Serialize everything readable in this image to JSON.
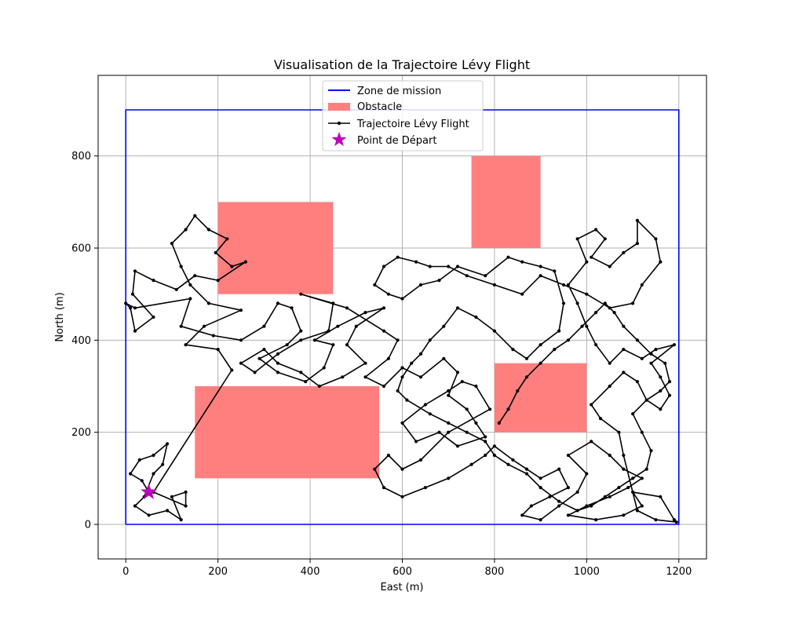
{
  "chart_data": {
    "type": "line",
    "title": "Visualisation de la Trajectoire Lévy Flight",
    "xlabel": "East (m)",
    "ylabel": "North (m)",
    "xlim": [
      -60,
      1260
    ],
    "ylim": [
      -75,
      975
    ],
    "xticks": [
      0,
      200,
      400,
      600,
      800,
      1000,
      1200
    ],
    "yticks": [
      0,
      200,
      400,
      600,
      800
    ],
    "grid": true,
    "legend_position": "top-center",
    "mission_zone": {
      "name": "Zone de mission",
      "color": "#0000ff",
      "polygon": [
        [
          0,
          0
        ],
        [
          1200,
          0
        ],
        [
          1200,
          900
        ],
        [
          0,
          900
        ],
        [
          0,
          0
        ]
      ]
    },
    "obstacles": {
      "name": "Obstacle",
      "color": "#ff7f7f",
      "rects": [
        {
          "x": 200,
          "y": 500,
          "w": 250,
          "h": 200
        },
        {
          "x": 750,
          "y": 600,
          "w": 150,
          "h": 200
        },
        {
          "x": 800,
          "y": 200,
          "w": 200,
          "h": 150
        },
        {
          "x": 150,
          "y": 100,
          "w": 400,
          "h": 200
        }
      ]
    },
    "trajectory": {
      "name": "Trajectoire Lévy Flight",
      "color": "#000000",
      "points": [
        [
          50,
          70
        ],
        [
          35,
          95
        ],
        [
          10,
          110
        ],
        [
          30,
          140
        ],
        [
          60,
          150
        ],
        [
          90,
          175
        ],
        [
          80,
          130
        ],
        [
          60,
          110
        ],
        [
          40,
          60
        ],
        [
          20,
          40
        ],
        [
          50,
          20
        ],
        [
          90,
          30
        ],
        [
          120,
          10
        ],
        [
          100,
          60
        ],
        [
          130,
          70
        ],
        [
          130,
          40
        ],
        [
          60,
          70
        ],
        [
          230,
          335
        ],
        [
          200,
          380
        ],
        [
          130,
          390
        ],
        [
          170,
          430
        ],
        [
          250,
          465
        ],
        [
          180,
          480
        ],
        [
          140,
          520
        ],
        [
          120,
          560
        ],
        [
          100,
          610
        ],
        [
          130,
          640
        ],
        [
          150,
          670
        ],
        [
          180,
          640
        ],
        [
          220,
          620
        ],
        [
          195,
          590
        ],
        [
          230,
          560
        ],
        [
          260,
          570
        ],
        [
          200,
          530
        ],
        [
          150,
          540
        ],
        [
          110,
          510
        ],
        [
          60,
          530
        ],
        [
          20,
          550
        ],
        [
          15,
          500
        ],
        [
          60,
          450
        ],
        [
          20,
          420
        ],
        [
          10,
          470
        ],
        [
          0,
          480
        ],
        [
          20,
          470
        ],
        [
          140,
          490
        ],
        [
          120,
          430
        ],
        [
          190,
          410
        ],
        [
          250,
          400
        ],
        [
          300,
          430
        ],
        [
          330,
          480
        ],
        [
          360,
          470
        ],
        [
          380,
          420
        ],
        [
          350,
          390
        ],
        [
          290,
          360
        ],
        [
          330,
          330
        ],
        [
          390,
          310
        ],
        [
          430,
          340
        ],
        [
          450,
          390
        ],
        [
          410,
          400
        ],
        [
          460,
          430
        ],
        [
          520,
          460
        ],
        [
          560,
          470
        ],
        [
          500,
          430
        ],
        [
          480,
          390
        ],
        [
          520,
          350
        ],
        [
          470,
          320
        ],
        [
          420,
          300
        ],
        [
          380,
          330
        ],
        [
          330,
          350
        ],
        [
          300,
          380
        ],
        [
          250,
          350
        ],
        [
          280,
          330
        ],
        [
          330,
          370
        ],
        [
          380,
          400
        ],
        [
          440,
          420
        ],
        [
          450,
          480
        ],
        [
          380,
          500
        ],
        [
          480,
          470
        ],
        [
          560,
          420
        ],
        [
          590,
          400
        ],
        [
          570,
          360
        ],
        [
          520,
          320
        ],
        [
          560,
          300
        ],
        [
          600,
          340
        ],
        [
          640,
          320
        ],
        [
          690,
          360
        ],
        [
          720,
          330
        ],
        [
          700,
          280
        ],
        [
          740,
          250
        ],
        [
          760,
          220
        ],
        [
          780,
          190
        ],
        [
          720,
          170
        ],
        [
          680,
          200
        ],
        [
          630,
          180
        ],
        [
          600,
          220
        ],
        [
          650,
          260
        ],
        [
          700,
          290
        ],
        [
          730,
          310
        ],
        [
          760,
          300
        ],
        [
          790,
          250
        ],
        [
          700,
          200
        ],
        [
          640,
          140
        ],
        [
          600,
          120
        ],
        [
          570,
          150
        ],
        [
          540,
          120
        ],
        [
          560,
          80
        ],
        [
          600,
          60
        ],
        [
          650,
          80
        ],
        [
          700,
          100
        ],
        [
          750,
          130
        ],
        [
          780,
          150
        ],
        [
          800,
          170
        ],
        [
          840,
          140
        ],
        [
          870,
          120
        ],
        [
          900,
          100
        ],
        [
          940,
          120
        ],
        [
          960,
          80
        ],
        [
          920,
          60
        ],
        [
          880,
          40
        ],
        [
          860,
          20
        ],
        [
          900,
          10
        ],
        [
          940,
          40
        ],
        [
          980,
          70
        ],
        [
          1000,
          110
        ],
        [
          960,
          150
        ],
        [
          1010,
          180
        ],
        [
          1050,
          150
        ],
        [
          1080,
          120
        ],
        [
          1120,
          100
        ],
        [
          1090,
          80
        ],
        [
          1050,
          60
        ],
        [
          1000,
          40
        ],
        [
          960,
          20
        ],
        [
          1020,
          10
        ],
        [
          1080,
          20
        ],
        [
          1120,
          40
        ],
        [
          1100,
          70
        ],
        [
          1160,
          60
        ],
        [
          1190,
          10
        ],
        [
          1195,
          5
        ],
        [
          1150,
          10
        ],
        [
          1110,
          30
        ],
        [
          1080,
          150
        ],
        [
          1070,
          200
        ],
        [
          1030,
          230
        ],
        [
          1010,
          260
        ],
        [
          1050,
          300
        ],
        [
          1080,
          330
        ],
        [
          1110,
          310
        ],
        [
          1130,
          270
        ],
        [
          1160,
          250
        ],
        [
          1180,
          280
        ],
        [
          1160,
          320
        ],
        [
          1140,
          350
        ],
        [
          1190,
          390
        ],
        [
          1150,
          380
        ],
        [
          1120,
          360
        ],
        [
          1080,
          380
        ],
        [
          1050,
          350
        ],
        [
          1020,
          390
        ],
        [
          1000,
          430
        ],
        [
          980,
          480
        ],
        [
          960,
          520
        ],
        [
          1000,
          570
        ],
        [
          980,
          620
        ],
        [
          1020,
          640
        ],
        [
          1040,
          620
        ],
        [
          1010,
          580
        ],
        [
          1050,
          560
        ],
        [
          1080,
          590
        ],
        [
          1110,
          610
        ],
        [
          1110,
          660
        ],
        [
          1150,
          620
        ],
        [
          1160,
          570
        ],
        [
          1120,
          520
        ],
        [
          1100,
          480
        ],
        [
          1050,
          470
        ],
        [
          1000,
          500
        ],
        [
          950,
          520
        ],
        [
          900,
          540
        ],
        [
          860,
          500
        ],
        [
          800,
          520
        ],
        [
          740,
          540
        ],
        [
          700,
          560
        ],
        [
          660,
          560
        ],
        [
          630,
          570
        ],
        [
          590,
          580
        ],
        [
          560,
          560
        ],
        [
          540,
          520
        ],
        [
          570,
          500
        ],
        [
          600,
          490
        ],
        [
          640,
          520
        ],
        [
          680,
          530
        ],
        [
          720,
          560
        ],
        [
          780,
          540
        ],
        [
          830,
          580
        ],
        [
          860,
          570
        ],
        [
          900,
          560
        ],
        [
          930,
          550
        ],
        [
          950,
          480
        ],
        [
          940,
          420
        ],
        [
          900,
          390
        ],
        [
          870,
          360
        ],
        [
          840,
          380
        ],
        [
          800,
          420
        ],
        [
          760,
          450
        ],
        [
          720,
          470
        ],
        [
          690,
          430
        ],
        [
          660,
          400
        ],
        [
          640,
          370
        ],
        [
          620,
          350
        ],
        [
          600,
          320
        ],
        [
          590,
          290
        ],
        [
          610,
          270
        ],
        [
          660,
          240
        ],
        [
          700,
          220
        ],
        [
          740,
          200
        ],
        [
          780,
          180
        ],
        [
          800,
          150
        ],
        [
          830,
          130
        ],
        [
          870,
          110
        ],
        [
          900,
          80
        ],
        [
          940,
          50
        ],
        [
          980,
          30
        ],
        [
          1010,
          40
        ],
        [
          1040,
          60
        ],
        [
          1070,
          80
        ],
        [
          1100,
          100
        ],
        [
          1130,
          120
        ],
        [
          1140,
          160
        ],
        [
          1120,
          200
        ],
        [
          1100,
          240
        ],
        [
          1130,
          270
        ],
        [
          1160,
          290
        ],
        [
          1180,
          310
        ],
        [
          1170,
          350
        ],
        [
          1140,
          370
        ],
        [
          1110,
          400
        ],
        [
          1080,
          430
        ],
        [
          1060,
          460
        ],
        [
          1040,
          480
        ],
        [
          1020,
          460
        ],
        [
          990,
          430
        ],
        [
          960,
          400
        ],
        [
          930,
          380
        ],
        [
          900,
          350
        ],
        [
          870,
          320
        ],
        [
          850,
          290
        ],
        [
          830,
          250
        ],
        [
          810,
          220
        ]
      ]
    },
    "start": {
      "name": "Point de Départ",
      "x": 50,
      "y": 70,
      "color": "#bf00bf"
    }
  }
}
